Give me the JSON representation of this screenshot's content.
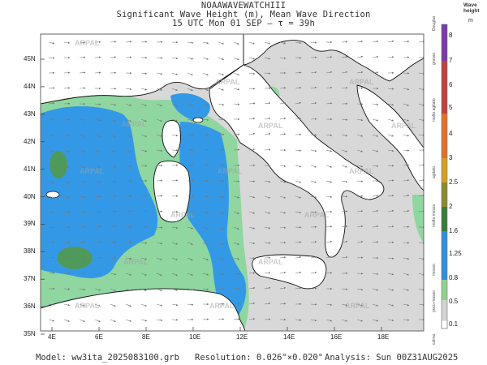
{
  "header": {
    "line1": "NOAAWAVEWATCHIII",
    "line2": "Significant Wave Height (m), Mean Wave Direction",
    "line3": "15 UTC Mon 01 SEP   —  τ = 39h"
  },
  "axes": {
    "lat_labels": [
      "45N",
      "44N",
      "43N",
      "42N",
      "41N",
      "40N",
      "39N",
      "38N",
      "37N",
      "36N",
      "35N"
    ],
    "lon_labels": [
      "4E",
      "6E",
      "8E",
      "10E",
      "12E",
      "14E",
      "16E",
      "18E"
    ]
  },
  "watermark": "ARPAL",
  "colorbar": {
    "title_line1": "Wave",
    "title_line2": "height",
    "unit": "m",
    "labels": [
      "8",
      "7",
      "6",
      "5",
      "4",
      "3",
      "2.5",
      "2",
      "1.6",
      "1.25",
      "0.8",
      "0.5",
      "0.1"
    ],
    "sea_states": [
      "Douglas",
      "grosso",
      "molto agitato",
      "agitato",
      "molto mosso",
      "mosso",
      "poco mosso",
      "calmo"
    ],
    "colors": [
      "#ffffff",
      "#d3d3d3",
      "#8fd18f",
      "#2f8fdc",
      "#3a7a3a",
      "#8a8a30",
      "#d4a020",
      "#e0702a",
      "#c04040",
      "#7a3aa8"
    ]
  },
  "footer": {
    "model": "Model: ww3ita_2025083100.grb",
    "resolution": "Resolution: 0.026°×0.020°",
    "analysis": "Analysis: Sun 00Z31AUG2025"
  },
  "map_data": {
    "extent": {
      "lon": [
        3.5,
        19.5
      ],
      "lat": [
        35,
        46
      ]
    },
    "colors": {
      "land": "#ffffff",
      "calm_sea": "#d8d8d8",
      "light_green": "#8fd6a0",
      "blue": "#3399e6",
      "dark_green": "#4f9a5a",
      "coast": "#111111",
      "arrow": "#777777"
    }
  }
}
